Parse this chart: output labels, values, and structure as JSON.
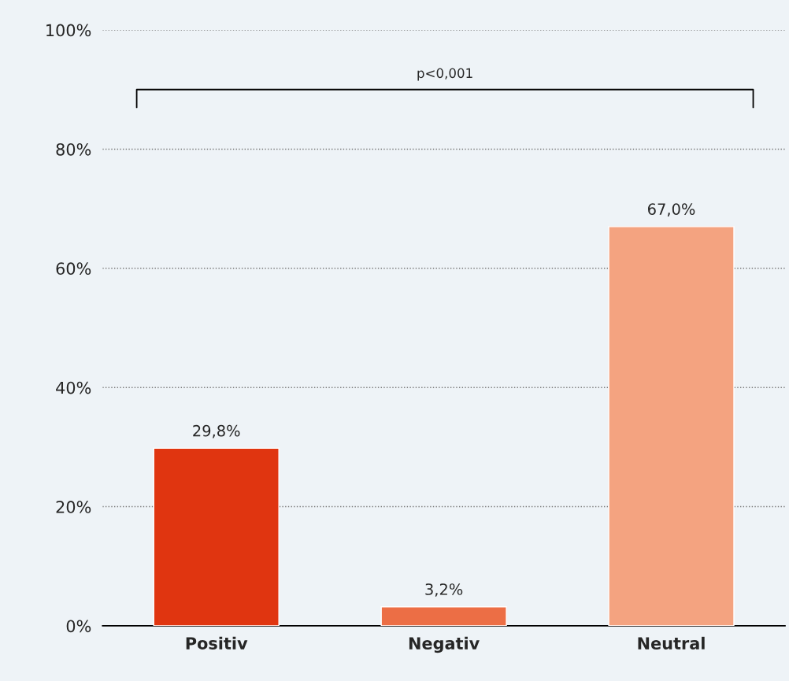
{
  "chart_data": {
    "type": "bar",
    "categories": [
      "Positiv",
      "Negativ",
      "Neutral"
    ],
    "values": [
      29.8,
      3.2,
      67.0
    ],
    "colors": [
      "#e03510",
      "#ec6e45",
      "#f4a380"
    ],
    "value_labels": [
      "29,8%",
      "3,2%",
      "67,0%"
    ],
    "ylim": [
      0,
      100
    ],
    "yticks": [
      {
        "value": 0,
        "label": "0%"
      },
      {
        "value": 20,
        "label": "20%"
      },
      {
        "value": 40,
        "label": "40%"
      },
      {
        "value": 60,
        "label": "60%"
      },
      {
        "value": 80,
        "label": "80%"
      },
      {
        "value": 100,
        "label": "100%"
      }
    ],
    "grid": "y",
    "legend": false,
    "annotations": [
      "p<0,001"
    ]
  }
}
